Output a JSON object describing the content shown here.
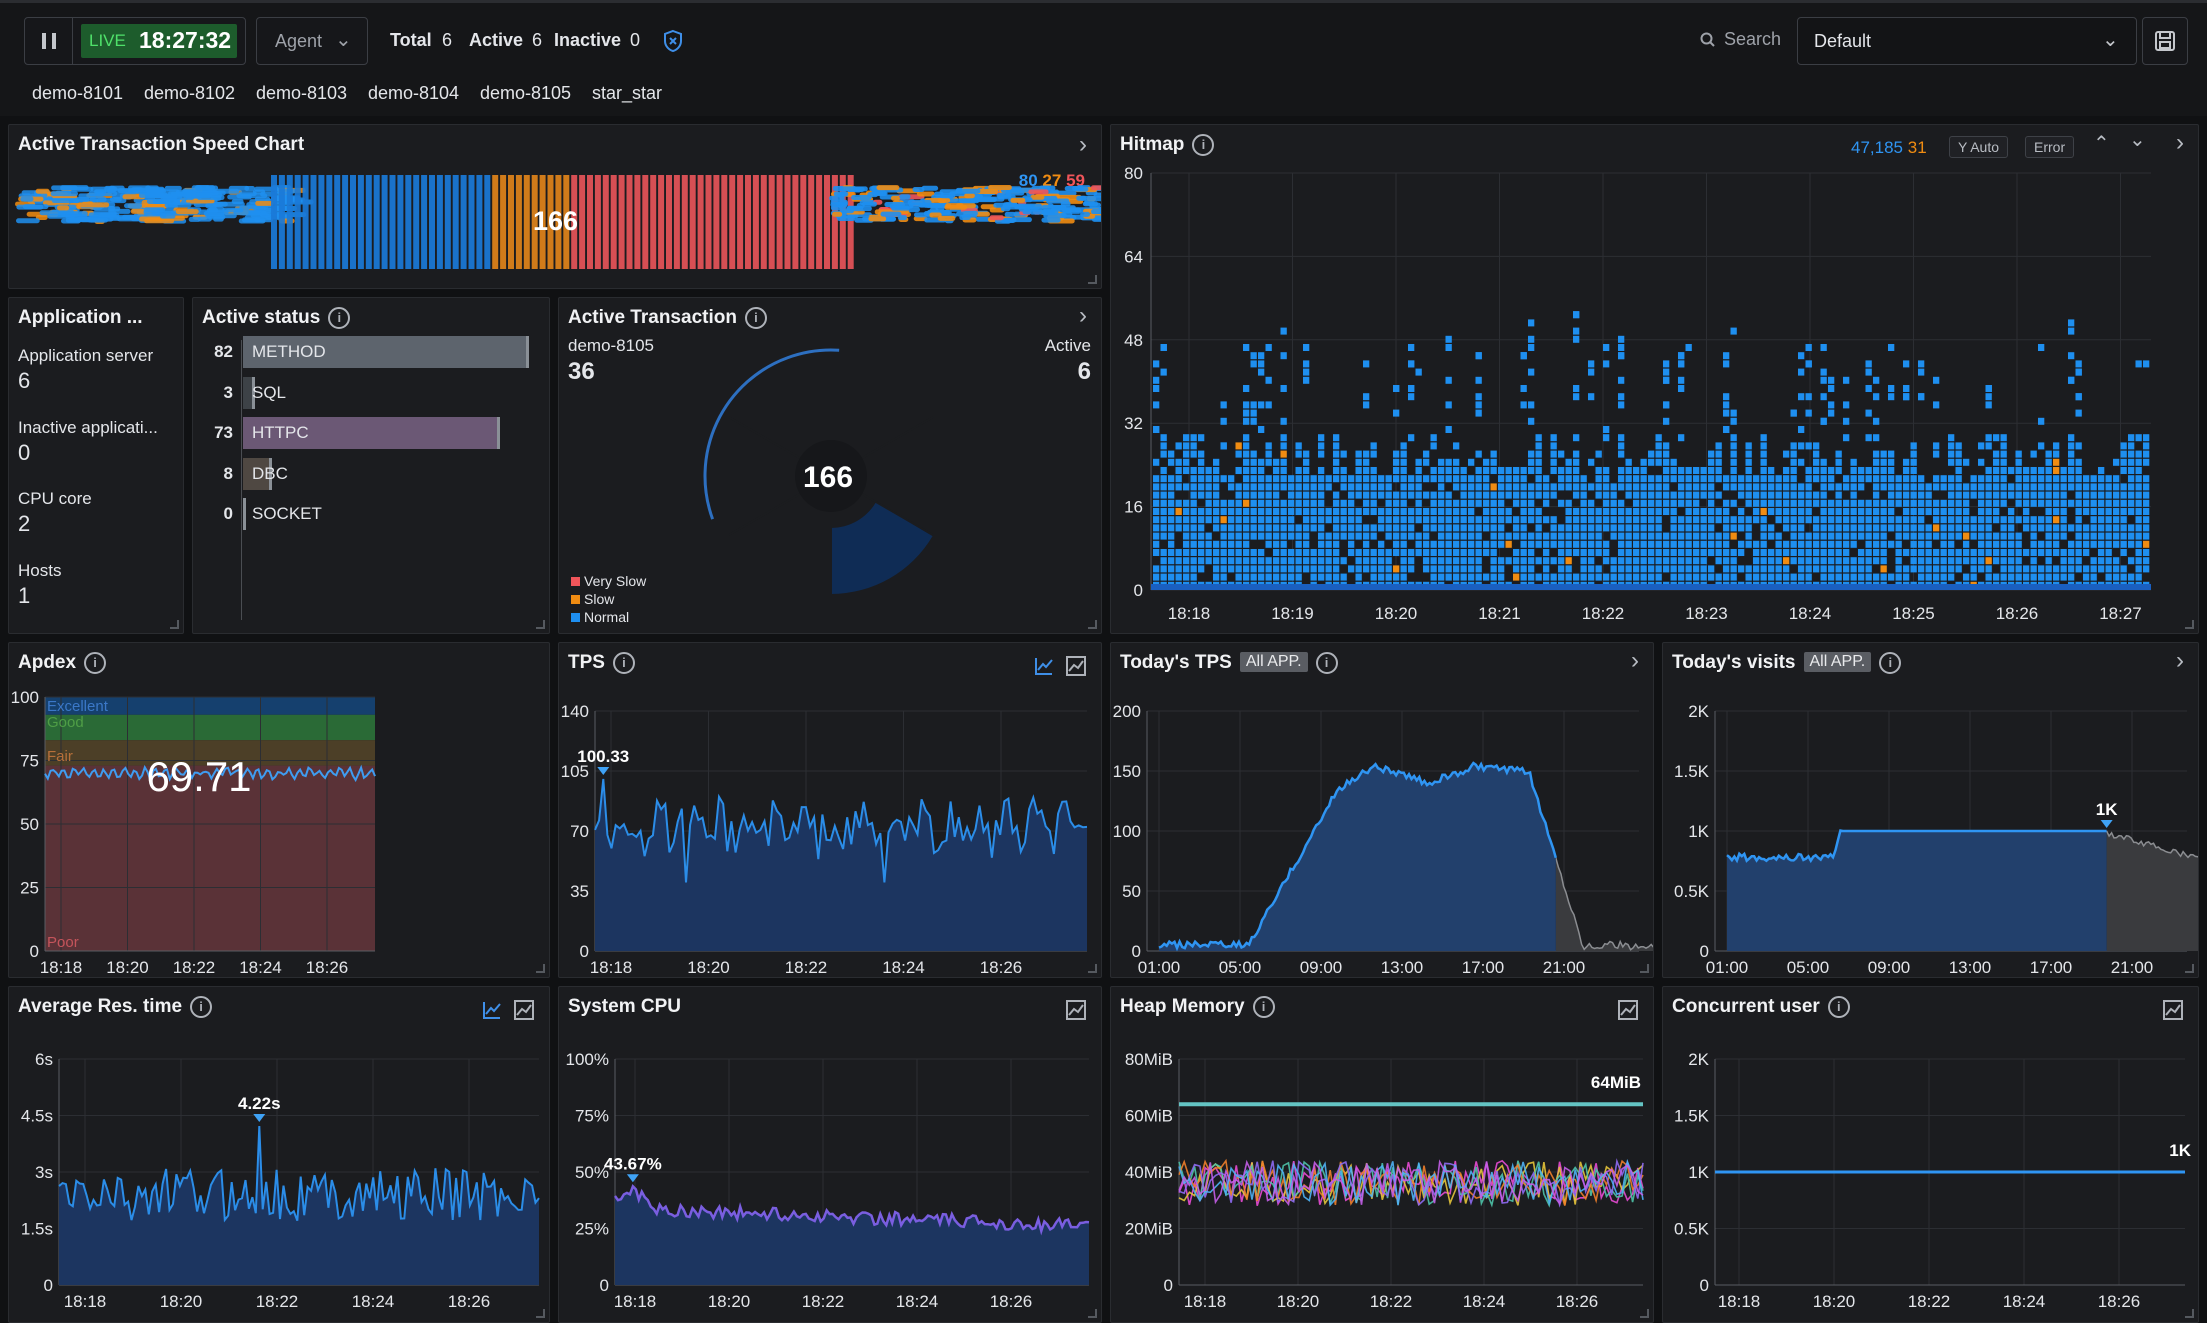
{
  "topbar": {
    "live": "LIVE",
    "time": "18:27:32",
    "agent": "Agent",
    "total_label": "Total",
    "total": "6",
    "active_label": "Active",
    "active": "6",
    "inactive_label": "Inactive",
    "inactive": "0",
    "search": "Search",
    "preset": "Default",
    "agents": [
      "demo-8101",
      "demo-8102",
      "demo-8103",
      "demo-8104",
      "demo-8105",
      "star_star"
    ]
  },
  "speed": {
    "title": "Active Transaction Speed Chart",
    "center": "166",
    "legend": [
      "80",
      "27",
      "59"
    ]
  },
  "app": {
    "title": "Application ...",
    "items": [
      {
        "label": "Application server",
        "value": "6"
      },
      {
        "label": "Inactive applicati...",
        "value": "0"
      },
      {
        "label": "CPU core",
        "value": "2"
      },
      {
        "label": "Hosts",
        "value": "1"
      }
    ]
  },
  "status": {
    "title": "Active status",
    "rows": [
      {
        "count": "82",
        "label": "METHOD",
        "fill": 0.98,
        "color": "#5d646d"
      },
      {
        "count": "3",
        "label": "SQL",
        "fill": 0.04,
        "color": "#3d4247"
      },
      {
        "count": "73",
        "label": "HTTPC",
        "fill": 0.88,
        "color": "#6b5875"
      },
      {
        "count": "8",
        "label": "DBC",
        "fill": 0.1,
        "color": "#4f4842"
      },
      {
        "count": "0",
        "label": "SOCKET",
        "fill": 0,
        "color": "#3d4247"
      }
    ]
  },
  "activetx": {
    "title": "Active Transaction",
    "agent": "demo-8105",
    "agent_value": "36",
    "active_label": "Active",
    "active_value": "6",
    "center": "166",
    "legend": [
      "Very Slow",
      "Slow",
      "Normal"
    ]
  },
  "hitmap": {
    "title": "Hitmap",
    "counts": [
      "47,185",
      "31"
    ],
    "yauto": "Y Auto",
    "error": "Error",
    "yticks": [
      "80",
      "64",
      "48",
      "32",
      "16",
      "0"
    ],
    "xticks": [
      "18:18",
      "18:19",
      "18:20",
      "18:21",
      "18:22",
      "18:23",
      "18:24",
      "18:25",
      "18:26",
      "18:27"
    ]
  },
  "apdex": {
    "title": "Apdex",
    "value": "69.71",
    "yticks": [
      "100",
      "75",
      "50",
      "25",
      "0"
    ],
    "bands": [
      "Excellent",
      "Good",
      "Fair",
      "Poor"
    ],
    "xticks": [
      "18:18",
      "18:20",
      "18:22",
      "18:24",
      "18:26"
    ]
  },
  "tps": {
    "title": "TPS",
    "peak": "100.33",
    "yticks": [
      "140",
      "105",
      "70",
      "35",
      "0"
    ],
    "xticks": [
      "18:18",
      "18:20",
      "18:22",
      "18:24",
      "18:26"
    ]
  },
  "todaytps": {
    "title": "Today's TPS",
    "tag": "All APP.",
    "yticks": [
      "200",
      "150",
      "100",
      "50",
      "0"
    ],
    "xticks": [
      "01:00",
      "05:00",
      "09:00",
      "13:00",
      "17:00",
      "21:00"
    ]
  },
  "visits": {
    "title": "Today's visits",
    "tag": "All APP.",
    "peak": "1K",
    "yticks": [
      "2K",
      "1.5K",
      "1K",
      "0.5K",
      "0"
    ],
    "xticks": [
      "01:00",
      "05:00",
      "09:00",
      "13:00",
      "17:00",
      "21:00"
    ]
  },
  "avgres": {
    "title": "Average Res. time",
    "peak": "4.22s",
    "yticks": [
      "6s",
      "4.5s",
      "3s",
      "1.5s",
      "0"
    ],
    "xticks": [
      "18:18",
      "18:20",
      "18:22",
      "18:24",
      "18:26"
    ]
  },
  "cpu": {
    "title": "System CPU",
    "peak": "43.67%",
    "yticks": [
      "100%",
      "75%",
      "50%",
      "25%",
      "0"
    ],
    "xticks": [
      "18:18",
      "18:20",
      "18:22",
      "18:24",
      "18:26"
    ]
  },
  "heap": {
    "title": "Heap Memory",
    "peak": "64MiB",
    "yticks": [
      "80MiB",
      "60MiB",
      "40MiB",
      "20MiB",
      "0"
    ],
    "xticks": [
      "18:18",
      "18:20",
      "18:22",
      "18:24",
      "18:26"
    ]
  },
  "cuser": {
    "title": "Concurrent user",
    "peak": "1K",
    "yticks": [
      "2K",
      "1.5K",
      "1K",
      "0.5K",
      "0"
    ],
    "xticks": [
      "18:18",
      "18:20",
      "18:22",
      "18:24",
      "18:26"
    ]
  },
  "colors": {
    "blue": "#1e8ff0",
    "orange": "#f08c12",
    "red": "#f0555a",
    "area": "#1f3b68"
  }
}
